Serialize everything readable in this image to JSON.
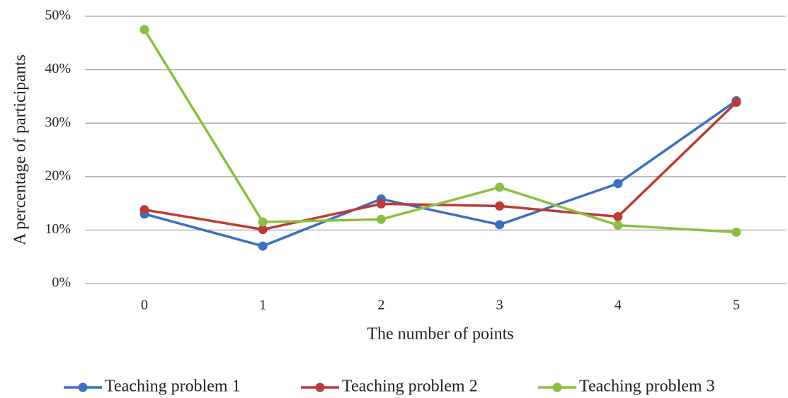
{
  "chart_data": {
    "type": "line",
    "x_label": "The number of points",
    "y_label": "A percentage of participants",
    "categories": [
      "0",
      "1",
      "2",
      "3",
      "4",
      "5"
    ],
    "series": [
      {
        "name": "Teaching problem 1",
        "color": "#3b6fc2",
        "values": [
          13,
          7,
          15.8,
          11,
          18.7,
          34.2
        ]
      },
      {
        "name": "Teaching problem 2",
        "color": "#be3a34",
        "values": [
          13.8,
          10.1,
          14.9,
          14.5,
          12.5,
          33.9
        ]
      },
      {
        "name": "Teaching problem 3",
        "color": "#8cbf3f",
        "values": [
          47.5,
          11.5,
          12,
          18,
          10.9,
          9.6
        ]
      }
    ],
    "ylim": [
      0,
      50
    ],
    "yticks": [
      {
        "value": 0,
        "label": "0%"
      },
      {
        "value": 10,
        "label": "10%"
      },
      {
        "value": 20,
        "label": "20%"
      },
      {
        "value": 30,
        "label": "30%"
      },
      {
        "value": 40,
        "label": "40%"
      },
      {
        "value": 50,
        "label": "50%"
      }
    ],
    "grid": true,
    "legend": "bottom"
  }
}
